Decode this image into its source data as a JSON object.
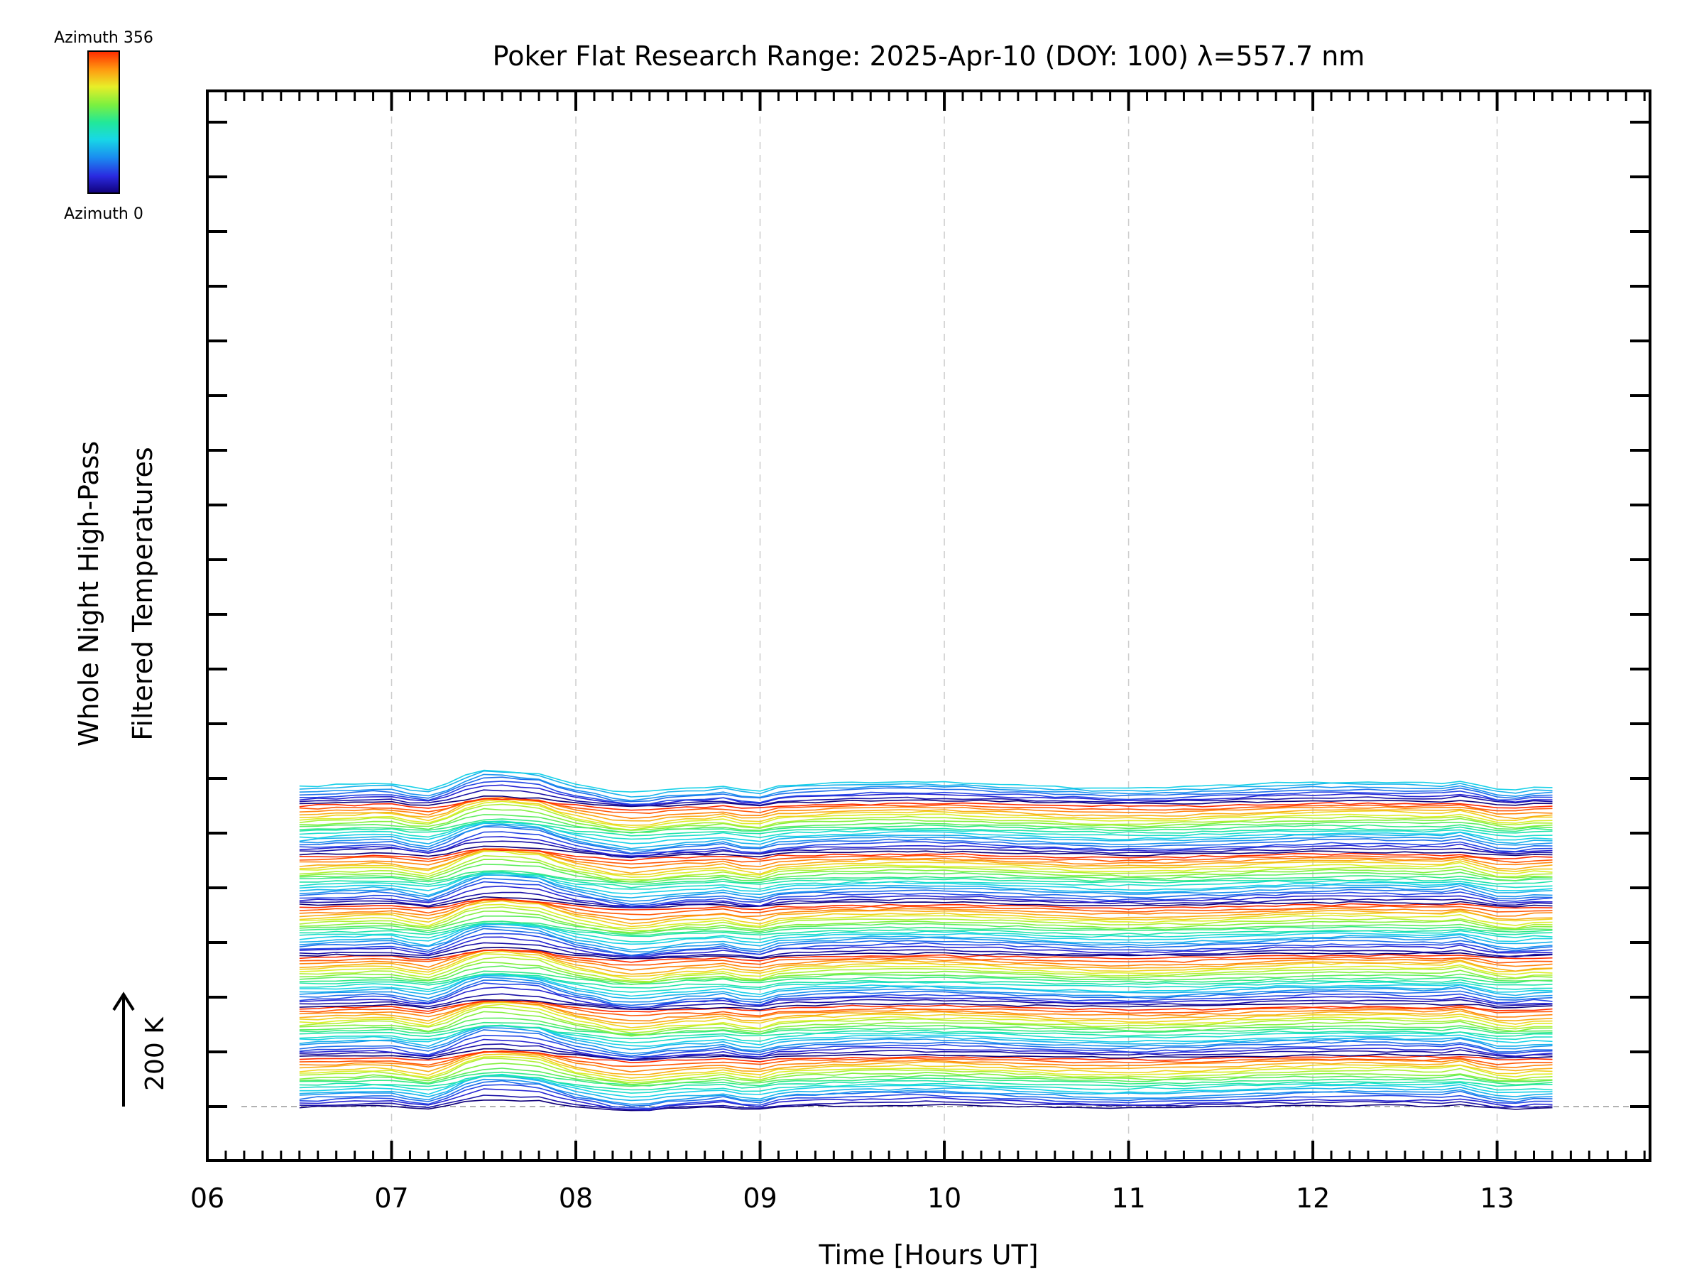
{
  "chart_data": {
    "type": "line",
    "title": "Poker Flat Research Range: 2025-Apr-10 (DOY: 100) λ=557.7 nm",
    "xlabel": "Time [Hours UT]",
    "ylabel_lines": [
      "Whole Night High-Pass",
      "Filtered Temperatures"
    ],
    "scale_label": "200 K",
    "xlim": [
      6.0,
      13.83
    ],
    "x_ticks": [
      6,
      7,
      8,
      9,
      10,
      11,
      12,
      13
    ],
    "x_tick_labels": [
      "06",
      "07",
      "08",
      "09",
      "10",
      "11",
      "12",
      "13"
    ],
    "grid": true,
    "data_start": 6.5,
    "data_end": 13.33,
    "sample_interval_hours": 0.1,
    "stacked_offset_k": 75,
    "n_series": 128,
    "series_description": "Stacked high-pass filtered temperature time series, one trace per azimuth, offset vertically and colored by azimuth (0 to 356 deg)",
    "colorbar": {
      "label_top": "Azimuth 356",
      "label_bottom": "Azimuth 0",
      "min": 0,
      "max": 356,
      "colormap": "rainbow"
    },
    "colors": {
      "axis": "#000000",
      "grid": "#cccccc",
      "baseline": "#999999"
    }
  }
}
